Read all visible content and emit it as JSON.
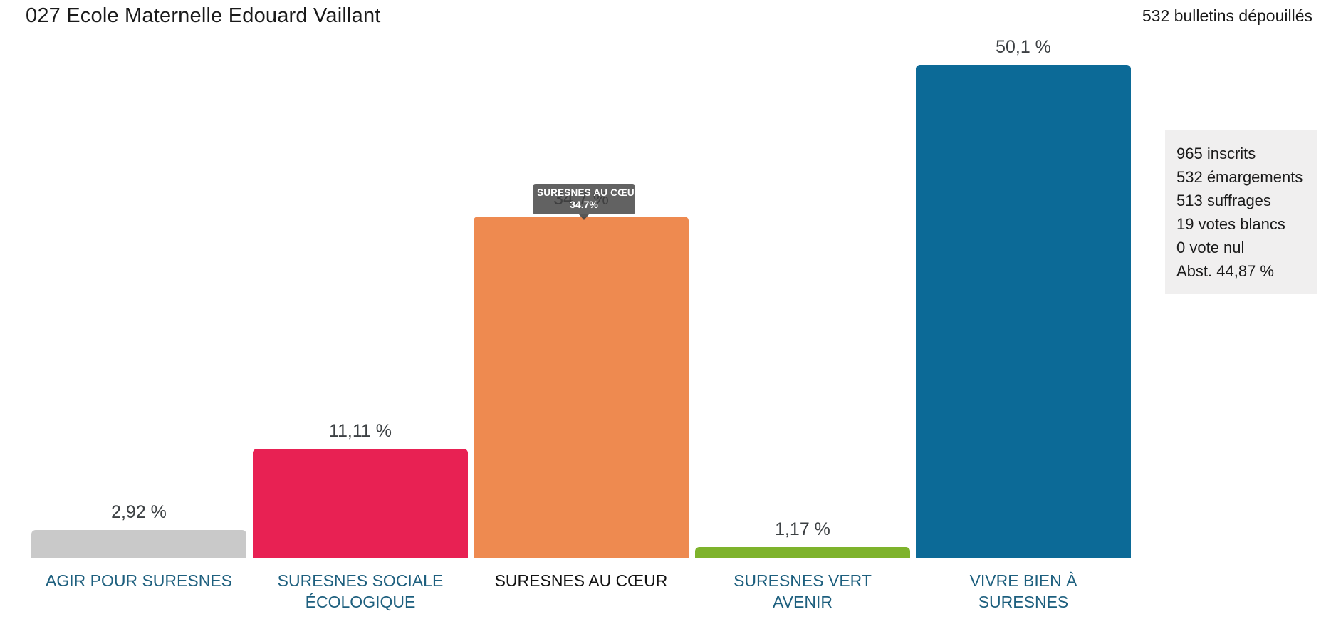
{
  "header": {
    "title": "027 Ecole Maternelle Edouard Vaillant",
    "bulletins_count": "532 bulletins dépouillés"
  },
  "chart_data": {
    "type": "bar",
    "title": "027 Ecole Maternelle Edouard Vaillant",
    "categories": [
      "AGIR POUR SURESNES",
      "SURESNES SOCIALE ÉCOLOGIQUE",
      "SURESNES AU CŒUR",
      "SURESNES VERT AVENIR",
      "VIVRE BIEN À SURESNES"
    ],
    "category_lines": [
      [
        "AGIR POUR SURESNES",
        ""
      ],
      [
        "SURESNES SOCIALE",
        "ÉCOLOGIQUE"
      ],
      [
        "SURESNES AU CŒUR",
        ""
      ],
      [
        "SURESNES VERT",
        "AVENIR"
      ],
      [
        "VIVRE BIEN À",
        "SURESNES"
      ]
    ],
    "values": [
      2.92,
      11.11,
      34.7,
      1.17,
      50.1
    ],
    "value_labels": [
      "2,92 %",
      "11,11 %",
      "34,7 %",
      "1,17 %",
      "50,1 %"
    ],
    "bar_colors": [
      "#c9c9c9",
      "#e82153",
      "#ee8a50",
      "#7eb32c",
      "#0c6a97"
    ],
    "highlighted_index": 2,
    "xlabel": "",
    "ylabel": "",
    "ylim": [
      0,
      52
    ],
    "grid": false,
    "axis_visible": false,
    "legend": "none"
  },
  "tooltip": {
    "title": "SURESNES AU CŒUR",
    "value": "34.7%",
    "bg_color": "#404040",
    "text_color": "#ffffff"
  },
  "stats_panel": {
    "lines": [
      "965 inscrits",
      "532 émargements",
      "513 suffrages",
      "19 votes blancs",
      "0 vote nul",
      "Abst. 44,87 %"
    ],
    "bg_color": "#f0efef"
  },
  "colors": {
    "category_label": "#1d5f7e",
    "category_label_active": "#121212",
    "value_label": "#3c4043"
  }
}
